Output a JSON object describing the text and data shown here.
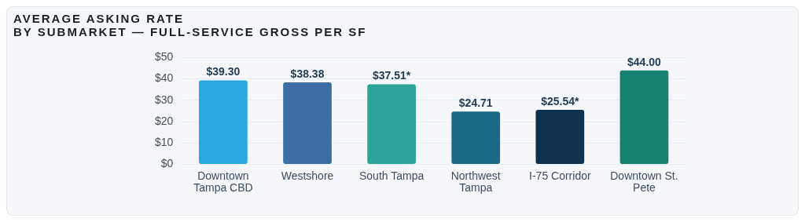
{
  "chart_data": {
    "type": "bar",
    "title": "AVERAGE ASKING RATE",
    "subtitle": "BY SUBMARKET — FULL-SERVICE GROSS PER SF",
    "categories": [
      "Downtown Tampa CBD",
      "Westshore",
      "South Tampa",
      "Northwest Tampa",
      "I-75 Corridor",
      "Downtown St. Pete"
    ],
    "values": [
      39.3,
      38.38,
      37.51,
      24.71,
      25.54,
      44
    ],
    "colors": [
      "#29a8e0",
      "#3b6ea5",
      "#2aa597",
      "#1b6a88",
      "#0f3250",
      "#16826f"
    ],
    "value_labels": [
      "$39.30",
      "$38.38",
      "$37.51*",
      "$24.71",
      "$25.54*",
      "$44.00"
    ],
    "ylim": [
      0,
      50
    ],
    "yticks": [
      {
        "value": 0,
        "label": "$0"
      },
      {
        "value": 10,
        "label": "$10"
      },
      {
        "value": 20,
        "label": "$20"
      },
      {
        "value": 30,
        "label": "$30"
      },
      {
        "value": 40,
        "label": "$40"
      },
      {
        "value": 50,
        "label": "$50"
      }
    ],
    "grid": "y",
    "legend": false
  }
}
